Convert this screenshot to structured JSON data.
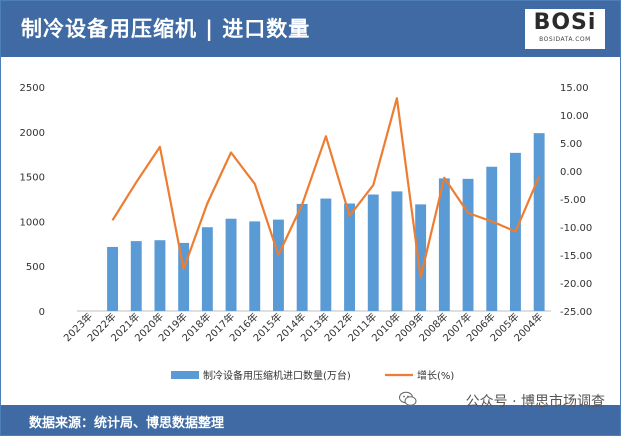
{
  "header": {
    "title": "制冷设备用压缩机 | 进口数量"
  },
  "logo": {
    "text": "BOSi",
    "subtext": "BOSIDATA.COM",
    "dot_color": "#d9342b"
  },
  "footer": {
    "source": "数据来源：统计局、博思数据整理"
  },
  "watermark": {
    "text": "公众号 · 博思市场调查",
    "icon": "wechat-icon"
  },
  "colors": {
    "bar": "#5b9bd5",
    "line": "#ed7d31",
    "header": "#3f6aa3"
  },
  "chart_data": {
    "type": "bar+line",
    "categories": [
      "2023年",
      "2022年",
      "2021年",
      "2020年",
      "2019年",
      "2018年",
      "2017年",
      "2016年",
      "2015年",
      "2014年",
      "2013年",
      "2012年",
      "2011年",
      "2010年",
      "2009年",
      "2008年",
      "2007年",
      "2006年",
      "2005年",
      "2004年"
    ],
    "series": [
      {
        "name": "制冷设备用压缩机进口数量(万台)",
        "kind": "bar",
        "axis": "left",
        "values": [
          null,
          715,
          780,
          790,
          760,
          935,
          1030,
          1000,
          1020,
          1195,
          1255,
          1200,
          1300,
          1335,
          1190,
          1480,
          1475,
          1610,
          1765,
          1985
        ]
      },
      {
        "name": "增长(%)",
        "kind": "line",
        "axis": "right",
        "values": [
          null,
          -8.8,
          -2.0,
          4.3,
          -17.5,
          -5.8,
          3.3,
          -2.3,
          -15.0,
          -6.0,
          6.2,
          -8.0,
          -2.5,
          13.0,
          -19.0,
          -1.2,
          -7.5,
          -9.0,
          -10.8,
          -1.0
        ]
      }
    ],
    "y_left": {
      "min": 0,
      "max": 2500,
      "ticks": [
        0,
        500,
        1000,
        1500,
        2000,
        2500
      ]
    },
    "y_right": {
      "min": -25,
      "max": 15,
      "ticks": [
        "-25.00",
        "-20.00",
        "-15.00",
        "-10.00",
        "-5.00",
        "0.00",
        "5.00",
        "10.00",
        "15.00"
      ]
    },
    "legend_position": "bottom",
    "grid": false
  }
}
